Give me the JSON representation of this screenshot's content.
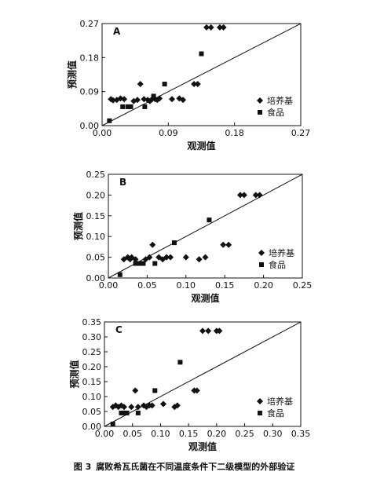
{
  "figure_caption": {
    "number": "图 3",
    "text": "腐败希瓦氏菌在不同温度条件下二级模型的外部验证"
  },
  "chart_data": [
    {
      "type": "scatter",
      "panel_label": "A",
      "xlabel": "观测值",
      "ylabel": "预测值",
      "xlim": [
        0,
        0.27
      ],
      "ylim": [
        0,
        0.27
      ],
      "xticks": [
        "0.00",
        "0.09",
        "0.18",
        "0.27"
      ],
      "yticks": [
        "0.00",
        "0.09",
        "0.18",
        "0.27"
      ],
      "reference_line": [
        [
          0,
          0
        ],
        [
          0.27,
          0.27
        ]
      ],
      "legend_position": "right",
      "series": [
        {
          "name": "培养基",
          "marker": "diamond",
          "points": [
            [
              0.012,
              0.07
            ],
            [
              0.015,
              0.067
            ],
            [
              0.02,
              0.068
            ],
            [
              0.025,
              0.072
            ],
            [
              0.03,
              0.07
            ],
            [
              0.043,
              0.065
            ],
            [
              0.048,
              0.068
            ],
            [
              0.052,
              0.11
            ],
            [
              0.057,
              0.07
            ],
            [
              0.062,
              0.068
            ],
            [
              0.065,
              0.065
            ],
            [
              0.068,
              0.07
            ],
            [
              0.072,
              0.07
            ],
            [
              0.075,
              0.068
            ],
            [
              0.078,
              0.072
            ],
            [
              0.095,
              0.07
            ],
            [
              0.105,
              0.072
            ],
            [
              0.11,
              0.068
            ],
            [
              0.125,
              0.11
            ],
            [
              0.13,
              0.11
            ],
            [
              0.142,
              0.26
            ],
            [
              0.148,
              0.26
            ],
            [
              0.16,
              0.26
            ],
            [
              0.165,
              0.26
            ]
          ]
        },
        {
          "name": "食品",
          "marker": "square",
          "points": [
            [
              0.01,
              0.013
            ],
            [
              0.028,
              0.05
            ],
            [
              0.035,
              0.05
            ],
            [
              0.039,
              0.05
            ],
            [
              0.058,
              0.05
            ],
            [
              0.07,
              0.078
            ],
            [
              0.085,
              0.11
            ],
            [
              0.135,
              0.19
            ]
          ]
        }
      ]
    },
    {
      "type": "scatter",
      "panel_label": "B",
      "xlabel": "观测值",
      "ylabel": "预测值",
      "xlim": [
        0,
        0.25
      ],
      "ylim": [
        0,
        0.25
      ],
      "xticks": [
        "0.00",
        "0.05",
        "0.10",
        "0.15",
        "0.20",
        "0.25"
      ],
      "yticks": [
        "0.00",
        "0.05",
        "0.10",
        "0.15",
        "0.20",
        "0.25"
      ],
      "reference_line": [
        [
          0,
          0
        ],
        [
          0.25,
          0.25
        ]
      ],
      "legend_position": "right",
      "series": [
        {
          "name": "培养基",
          "marker": "diamond",
          "points": [
            [
              0.02,
              0.045
            ],
            [
              0.025,
              0.05
            ],
            [
              0.028,
              0.045
            ],
            [
              0.03,
              0.05
            ],
            [
              0.035,
              0.045
            ],
            [
              0.048,
              0.045
            ],
            [
              0.053,
              0.05
            ],
            [
              0.057,
              0.08
            ],
            [
              0.065,
              0.05
            ],
            [
              0.07,
              0.045
            ],
            [
              0.075,
              0.05
            ],
            [
              0.08,
              0.05
            ],
            [
              0.1,
              0.05
            ],
            [
              0.117,
              0.045
            ],
            [
              0.125,
              0.05
            ],
            [
              0.148,
              0.08
            ],
            [
              0.155,
              0.08
            ],
            [
              0.17,
              0.2
            ],
            [
              0.175,
              0.2
            ],
            [
              0.19,
              0.2
            ],
            [
              0.195,
              0.2
            ]
          ]
        },
        {
          "name": "食品",
          "marker": "square",
          "points": [
            [
              0.015,
              0.008
            ],
            [
              0.035,
              0.035
            ],
            [
              0.04,
              0.035
            ],
            [
              0.045,
              0.035
            ],
            [
              0.06,
              0.035
            ],
            [
              0.085,
              0.085
            ],
            [
              0.13,
              0.14
            ]
          ]
        }
      ]
    },
    {
      "type": "scatter",
      "panel_label": "C",
      "xlabel": "观测值",
      "ylabel": "预测值",
      "xlim": [
        0,
        0.35
      ],
      "ylim": [
        0,
        0.35
      ],
      "xticks": [
        "0.00",
        "0.05",
        "0.10",
        "0.15",
        "0.20",
        "0.25",
        "0.30",
        "0.35"
      ],
      "yticks": [
        "0.00",
        "0.05",
        "0.10",
        "0.15",
        "0.20",
        "0.25",
        "0.30",
        "0.35"
      ],
      "reference_line": [
        [
          0,
          0
        ],
        [
          0.35,
          0.35
        ]
      ],
      "legend_position": "right",
      "series": [
        {
          "name": "培养基",
          "marker": "diamond",
          "points": [
            [
              0.015,
              0.065
            ],
            [
              0.02,
              0.07
            ],
            [
              0.025,
              0.065
            ],
            [
              0.03,
              0.07
            ],
            [
              0.035,
              0.065
            ],
            [
              0.048,
              0.065
            ],
            [
              0.055,
              0.12
            ],
            [
              0.06,
              0.065
            ],
            [
              0.07,
              0.07
            ],
            [
              0.075,
              0.065
            ],
            [
              0.08,
              0.07
            ],
            [
              0.085,
              0.07
            ],
            [
              0.105,
              0.075
            ],
            [
              0.125,
              0.065
            ],
            [
              0.13,
              0.07
            ],
            [
              0.16,
              0.12
            ],
            [
              0.165,
              0.12
            ],
            [
              0.175,
              0.32
            ],
            [
              0.185,
              0.32
            ],
            [
              0.2,
              0.32
            ],
            [
              0.205,
              0.32
            ]
          ]
        },
        {
          "name": "食品",
          "marker": "square",
          "points": [
            [
              0.015,
              0.008
            ],
            [
              0.03,
              0.045
            ],
            [
              0.035,
              0.045
            ],
            [
              0.04,
              0.045
            ],
            [
              0.06,
              0.045
            ],
            [
              0.09,
              0.12
            ],
            [
              0.135,
              0.215
            ]
          ]
        }
      ]
    }
  ]
}
